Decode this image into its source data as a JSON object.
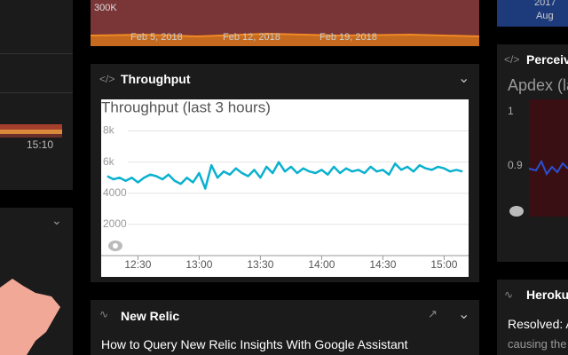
{
  "top_panel": {
    "max_label": "300K",
    "dates": [
      "Feb 5, 2018",
      "Feb 12, 2018",
      "Feb 19, 2018"
    ]
  },
  "left_panel": {
    "time_label": "15:10"
  },
  "corner_item": {
    "year": "2017",
    "month": "Aug"
  },
  "throughput_panel": {
    "header": "Throughput"
  },
  "chart_data": {
    "type": "line",
    "title": "Throughput (last 3 hours)",
    "color": "#0ab1cf",
    "grid": true,
    "x": [
      735,
      738,
      741,
      744,
      747,
      750,
      753,
      756,
      759,
      762,
      765,
      768,
      771,
      774,
      777,
      780,
      783,
      786,
      789,
      792,
      795,
      798,
      801,
      804,
      807,
      810,
      813,
      816,
      819,
      822,
      825,
      828,
      831,
      834,
      837,
      840,
      843,
      846,
      849,
      852,
      855,
      858,
      861,
      864,
      867,
      870,
      873,
      876,
      879,
      882,
      885,
      888,
      891,
      894,
      897,
      900,
      903,
      906,
      909
    ],
    "values": [
      5100,
      4900,
      5000,
      4800,
      5000,
      4700,
      5000,
      5200,
      5100,
      4900,
      5200,
      4800,
      4600,
      5000,
      4700,
      5300,
      4300,
      5800,
      5000,
      5400,
      5200,
      5600,
      5300,
      5100,
      5500,
      5000,
      5700,
      5300,
      6000,
      5400,
      5700,
      5300,
      5600,
      5400,
      5300,
      5500,
      5200,
      5700,
      5300,
      5600,
      5400,
      5500,
      5300,
      5700,
      5400,
      5500,
      5200,
      5900,
      5500,
      5700,
      5400,
      5800,
      5600,
      5500,
      5700,
      5600,
      5400,
      5500,
      5400
    ],
    "xlim": [
      732,
      912
    ],
    "xticks": [
      {
        "value": 750,
        "label": "12:30"
      },
      {
        "value": 780,
        "label": "13:00"
      },
      {
        "value": 810,
        "label": "13:30"
      },
      {
        "value": 840,
        "label": "14:00"
      },
      {
        "value": 870,
        "label": "14:30"
      },
      {
        "value": 900,
        "label": "15:00"
      }
    ],
    "ylim": [
      0,
      9000
    ],
    "yticks": [
      2000,
      4000,
      {
        "value": 6000,
        "label": "6k"
      },
      {
        "value": 8000,
        "label": "8k"
      }
    ]
  },
  "apdex_panel": {
    "header": "Perceiv",
    "title": "Apdex (la",
    "ticks": [
      1,
      0.9
    ]
  },
  "news_panel": {
    "header": "New Relic",
    "article": "How to Query New Relic Insights With Google Assistant"
  },
  "heroku_panel": {
    "header": "Heroku",
    "status": "Resolved: A",
    "detail": "causing the"
  }
}
